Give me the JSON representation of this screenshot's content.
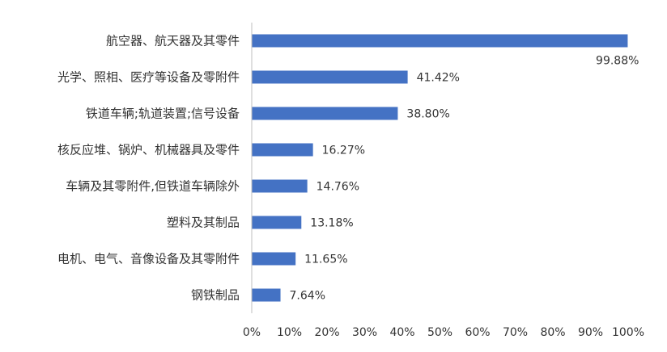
{
  "chart_data": {
    "type": "bar",
    "orientation": "horizontal",
    "categories": [
      "航空器、航天器及其零件",
      "光学、照相、医疗等设备及零附件",
      "铁道车辆;轨道装置;信号设备",
      "核反应堆、锅炉、机械器具及零件",
      "车辆及其零附件,但铁道车辆除外",
      "塑料及其制品",
      "电机、电气、音像设备及其零附件",
      "钢铁制品"
    ],
    "values": [
      99.88,
      41.42,
      38.8,
      16.27,
      14.76,
      13.18,
      11.65,
      7.64
    ],
    "value_labels": [
      "99.88%",
      "41.42%",
      "38.80%",
      "16.27%",
      "14.76%",
      "13.18%",
      "11.65%",
      "7.64%"
    ],
    "x_ticks": [
      "0%",
      "10%",
      "20%",
      "30%",
      "40%",
      "50%",
      "60%",
      "70%",
      "80%",
      "90%",
      "100%"
    ],
    "xlim": [
      0,
      100
    ],
    "title": "",
    "xlabel": "",
    "ylabel": "",
    "grid": false,
    "legend": "none",
    "bar_color": "#4472C4",
    "axis_color": "#bfbfbf"
  }
}
